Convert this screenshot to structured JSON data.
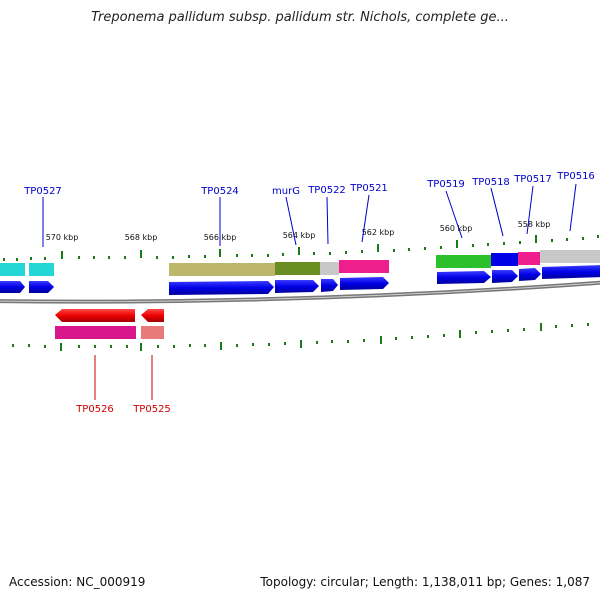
{
  "title": "Treponema pallidum subsp. pallidum str. Nichols, complete ge...",
  "accession": "Accession: NC_000919",
  "summary": "Topology: circular; Length: 1,138,011 bp; Genes: 1,087",
  "tick_labels": [
    "570 kbp",
    "568 kbp",
    "566 kbp",
    "564 kbp",
    "562 kbp",
    "560 kbp",
    "558 kbp"
  ],
  "forward_gene_labels": [
    "TP0527",
    "TP0524",
    "murG",
    "TP0522",
    "TP0521",
    "TP0519",
    "TP0518",
    "TP0517",
    "TP0516"
  ],
  "reverse_gene_labels": [
    "TP0526",
    "TP0525"
  ],
  "colors": {
    "forward_label": "#0000cc",
    "reverse_label": "#cc0000",
    "tick": "#1a7a1a",
    "backbone": "#777777",
    "cds_blue": "#0000ee",
    "cds_red": "#ee0000"
  }
}
